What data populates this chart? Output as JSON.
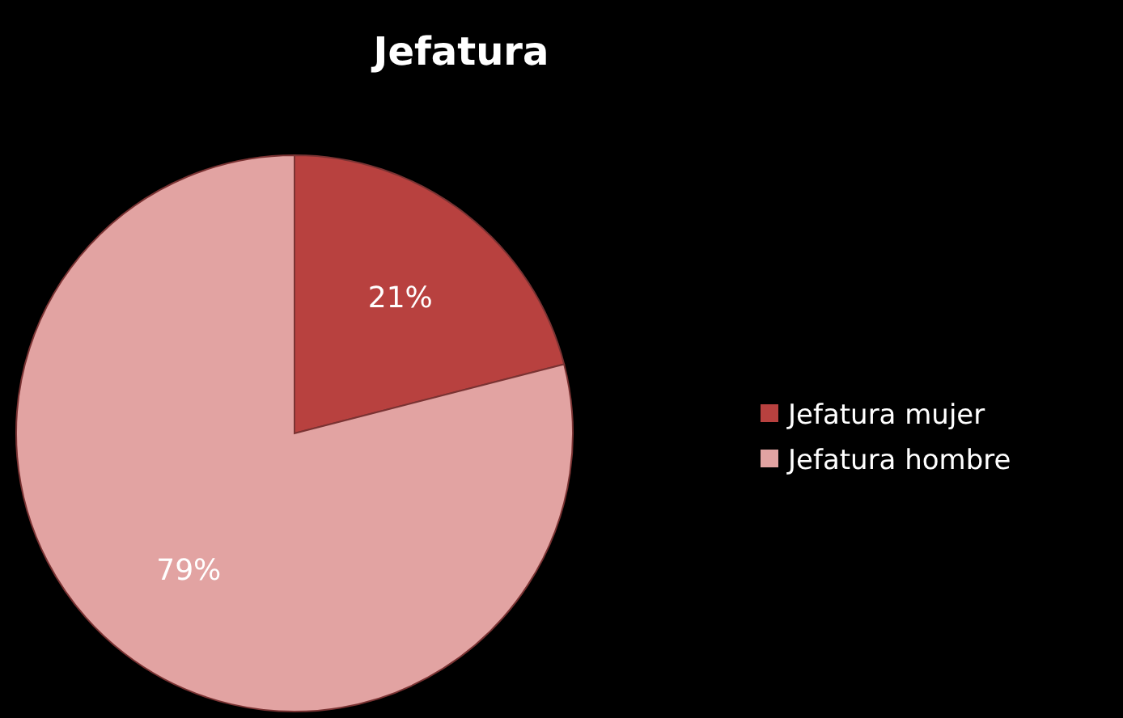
{
  "chart_data": {
    "type": "pie",
    "title": "Jefatura",
    "categories": [
      "Jefatura mujer",
      "Jefatura hombre"
    ],
    "values": [
      21,
      79
    ],
    "colors": [
      "#b8413f",
      "#e2a3a2"
    ],
    "value_labels": [
      "21%",
      "79%"
    ],
    "legend": "right"
  }
}
